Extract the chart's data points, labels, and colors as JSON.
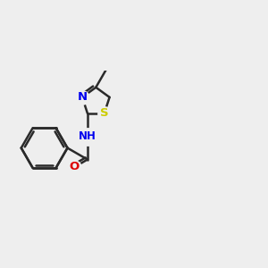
{
  "bg_color": "#eeeeee",
  "bond_color": "#2a2a2a",
  "bond_width": 1.8,
  "atom_colors": {
    "N": "#0000ee",
    "O": "#dd0000",
    "S": "#cccc00"
  },
  "dbo": 0.065
}
